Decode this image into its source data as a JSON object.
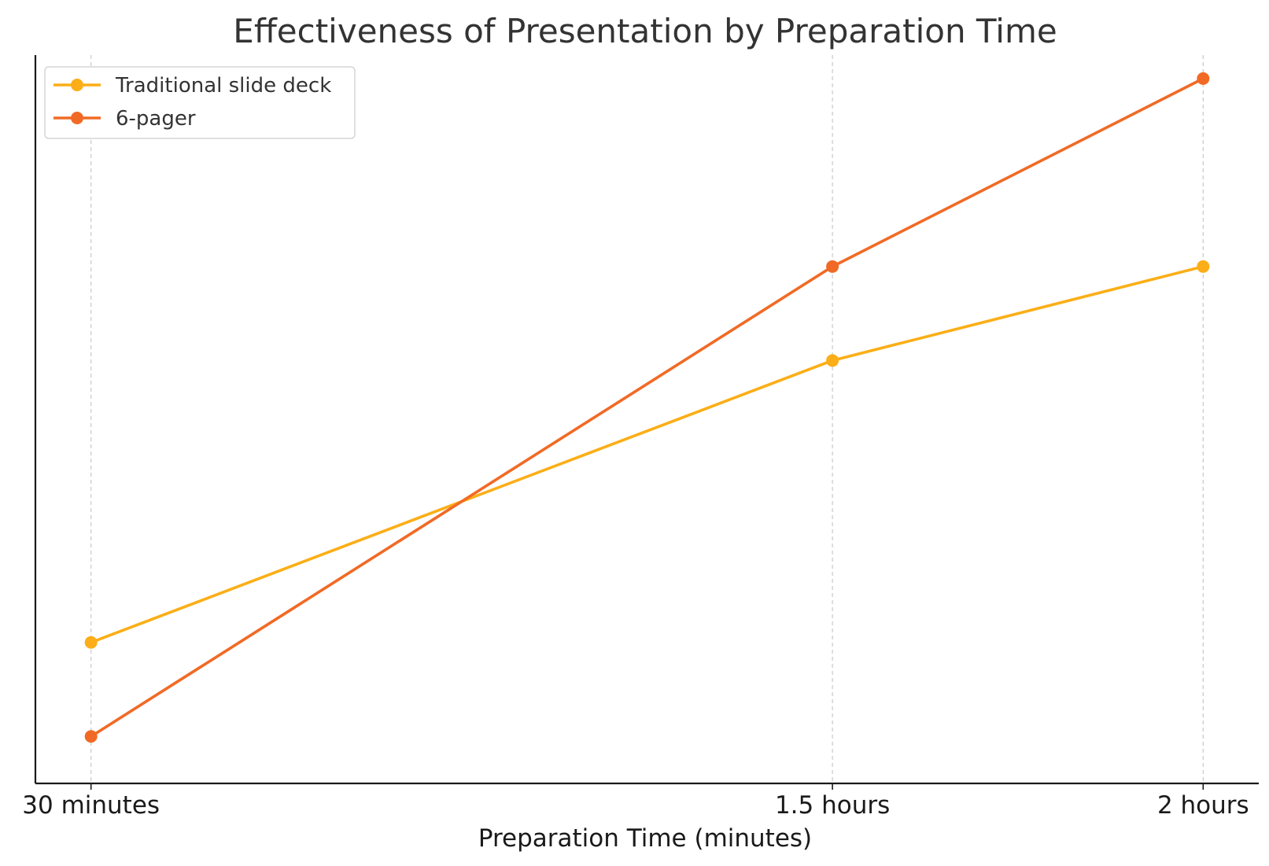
{
  "chart_data": {
    "type": "line",
    "title": "Effectiveness of Presentation by Preparation Time",
    "xlabel": "Preparation Time (minutes)",
    "ylabel": "",
    "x": [
      30,
      90,
      120
    ],
    "x_tick_labels": [
      "30 minutes",
      "1.5 hours",
      "2 hours"
    ],
    "xlim": [
      25.5,
      124.5
    ],
    "ylim": [
      0,
      7.75
    ],
    "y_ticks_shown": false,
    "grid": "vertical dashed",
    "legend_position": "top-left",
    "series": [
      {
        "name": "Traditional slide deck",
        "color": "#FBAE17",
        "values": [
          1.5,
          4.5,
          5.5
        ]
      },
      {
        "name": "6-pager",
        "color": "#F16A25",
        "values": [
          0.5,
          5.5,
          7.5
        ]
      }
    ]
  }
}
